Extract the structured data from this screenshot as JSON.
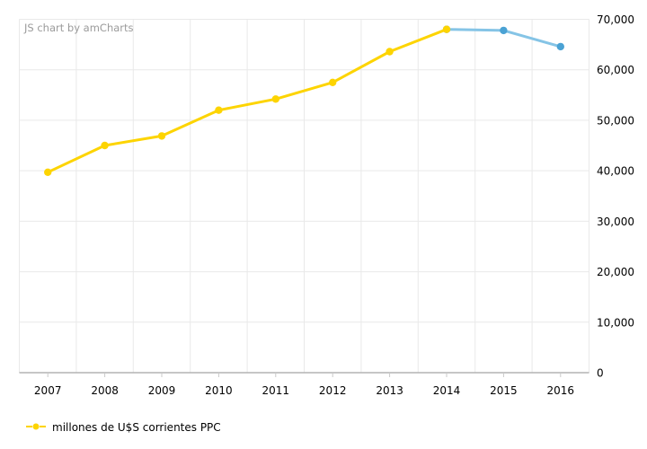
{
  "watermark": "JS chart by amCharts",
  "legend": {
    "position": "bottom",
    "items": [
      {
        "label": "millones de U$S corrientes PPC",
        "color": "#FDD400"
      }
    ]
  },
  "style": {
    "background": "#FFFFFF",
    "grid_color": "#E9E9E9",
    "axis_color": "#B3B3B3",
    "tick_color": "#C9C9C9",
    "text_color": "#000000",
    "watermark_color": "#9B9B9B"
  },
  "chart_data": {
    "type": "line",
    "title": "",
    "xlabel": "",
    "ylabel": "",
    "categories": [
      "2007",
      "2008",
      "2009",
      "2010",
      "2011",
      "2012",
      "2013",
      "2014",
      "2015",
      "2016"
    ],
    "series": [
      {
        "name": "millones de U$S corrientes PPC",
        "line_color": "#FDD400",
        "bullet_color": "#FDD400",
        "values": [
          39700,
          45000,
          46900,
          52000,
          54200,
          57500,
          63600,
          68000,
          null,
          null
        ]
      },
      {
        "name": "",
        "line_color": "#85C4E6",
        "bullet_color": "#4AA2D4",
        "values": [
          null,
          null,
          null,
          null,
          null,
          null,
          null,
          68000,
          67800,
          64600
        ]
      }
    ],
    "ylim": [
      0,
      70000
    ],
    "yticks": [
      {
        "value": 0,
        "label": "0"
      },
      {
        "value": 10000,
        "label": "10,000"
      },
      {
        "value": 20000,
        "label": "20,000"
      },
      {
        "value": 30000,
        "label": "30,000"
      },
      {
        "value": 40000,
        "label": "40,000"
      },
      {
        "value": 50000,
        "label": "50,000"
      },
      {
        "value": 60000,
        "label": "60,000"
      },
      {
        "value": 70000,
        "label": "70,000"
      }
    ],
    "grid": true,
    "legend_position": "bottom",
    "y_axis_side": "right"
  }
}
